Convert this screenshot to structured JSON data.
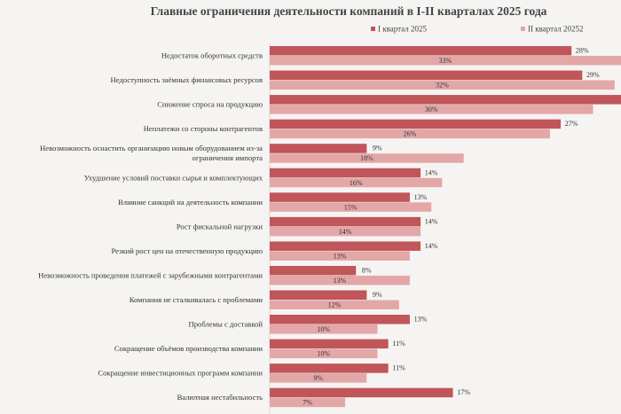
{
  "chart_data": {
    "type": "bar",
    "orientation": "horizontal",
    "title": "Главные ограничения деятельности компаний в I-II кварталах 2025 года",
    "legend_position": "top-right",
    "grid": false,
    "xlim": [
      0,
      35
    ],
    "categories": [
      [
        "Недостаток оборотных средств"
      ],
      [
        "Недоступность заёмных финансовых ресурсов"
      ],
      [
        "Снижение спроса на продукцию"
      ],
      [
        "Неплатежи со стороны контрагентов"
      ],
      [
        "Невозможность оснастить организацию новым оборудованием из-за",
        "ограничения импорта"
      ],
      [
        "Ухудшение условий поставки сырья и комплектующих"
      ],
      [
        "Влияние санкций на деятельность компании"
      ],
      [
        "Рост фискальной нагрузки"
      ],
      [
        "Резкий рост цен на отечественную продукцию"
      ],
      [
        "Невозможность проведения платежей с зарубежными контрагентами"
      ],
      [
        "Компания не сталкивалась с проблемами"
      ],
      [
        "Проблемы с доставкой"
      ],
      [
        "Сокращение объёмов производства компании"
      ],
      [
        "Сокращение инвестиционных программ компании"
      ],
      [
        "Валютная нестабильность"
      ]
    ],
    "series": [
      {
        "name": "I квартал 2025",
        "color": "#c0555a",
        "values": [
          28,
          29,
          35,
          27,
          9,
          14,
          13,
          14,
          14,
          8,
          9,
          13,
          11,
          11,
          17
        ],
        "labels": [
          "28%",
          "29%",
          "",
          "27%",
          "9%",
          "14%",
          "13%",
          "14%",
          "14%",
          "8%",
          "9%",
          "13%",
          "11%",
          "11%",
          "17%"
        ]
      },
      {
        "name": "II квартал 20252",
        "color": "#e3a7a8",
        "values": [
          33,
          32,
          30,
          26,
          18,
          16,
          15,
          14,
          13,
          13,
          12,
          10,
          10,
          9,
          7
        ],
        "labels": [
          "33%",
          "32%",
          "30%",
          "26%",
          "18%",
          "16%",
          "15%",
          "14%",
          "13%",
          "13%",
          "12%",
          "10%",
          "10%",
          "9%",
          "7%"
        ]
      }
    ]
  }
}
